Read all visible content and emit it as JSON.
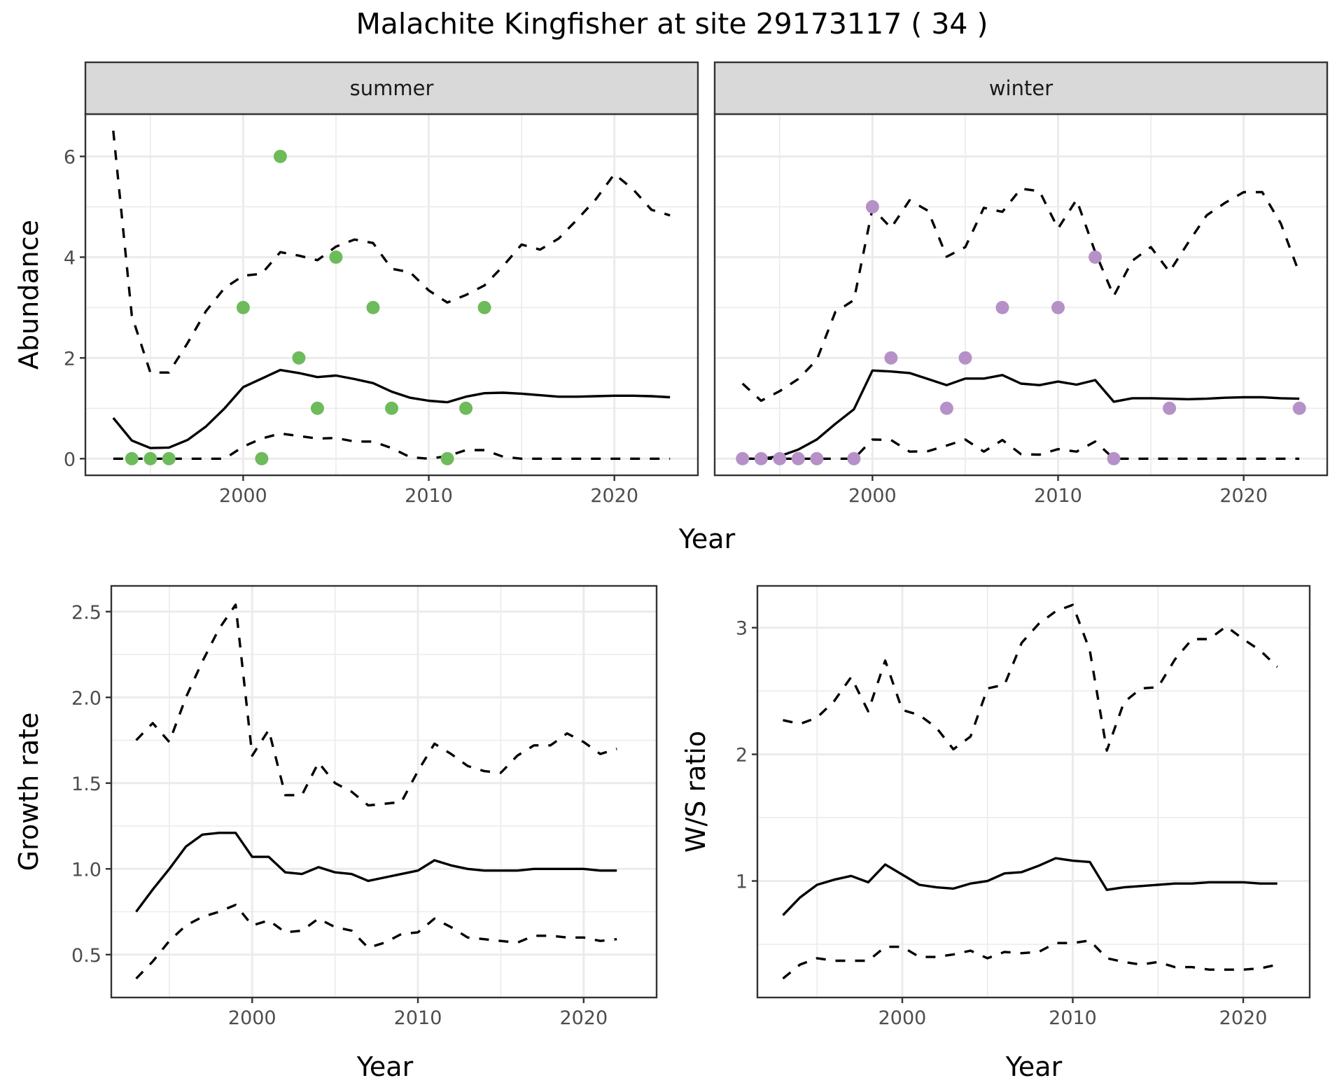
{
  "chart_data": {
    "type": "line",
    "title": "Malachite Kingfisher at site 29173117 ( 34 )",
    "panels": [
      {
        "id": "summer",
        "strip_label": "summer",
        "ylabel": "Abundance",
        "xlabel": "Year",
        "xlim": [
          1991.5,
          2024.5
        ],
        "ylim": [
          -0.33,
          6.84
        ],
        "x_ticks": [
          2000,
          2010,
          2020
        ],
        "x_tick_labels": [
          "2000",
          "2010",
          "2020"
        ],
        "y_ticks": [
          0,
          2,
          4,
          6
        ],
        "y_tick_labels": [
          "0",
          "2",
          "4",
          "6"
        ],
        "grid": true,
        "point_color": "#6dbb5b",
        "points": {
          "x": [
            1994,
            1995,
            1996,
            2000,
            2001,
            2002,
            2003,
            2004,
            2005,
            2007,
            2008,
            2011,
            2012,
            2013
          ],
          "y": [
            0,
            0,
            0,
            3,
            0,
            6,
            2,
            1,
            4,
            3,
            1,
            0,
            1,
            3
          ]
        },
        "x": [
          1993,
          1994,
          1995,
          1996,
          1997,
          1998,
          1999,
          2000,
          2001,
          2002,
          2003,
          2004,
          2005,
          2006,
          2007,
          2008,
          2009,
          2010,
          2011,
          2012,
          2013,
          2014,
          2015,
          2016,
          2017,
          2018,
          2019,
          2020,
          2021,
          2022,
          2023
        ],
        "series": [
          {
            "name": "estimate",
            "style": "solid",
            "values": [
              0.81,
              0.36,
              0.21,
              0.22,
              0.37,
              0.64,
              1.0,
              1.42,
              1.59,
              1.76,
              1.7,
              1.62,
              1.65,
              1.58,
              1.5,
              1.33,
              1.21,
              1.15,
              1.12,
              1.23,
              1.3,
              1.31,
              1.29,
              1.26,
              1.23,
              1.23,
              1.24,
              1.25,
              1.25,
              1.24,
              1.22
            ]
          },
          {
            "name": "upper",
            "style": "dashed",
            "values": [
              6.51,
              2.84,
              1.71,
              1.71,
              2.29,
              2.93,
              3.39,
              3.63,
              3.67,
              4.1,
              4.03,
              3.94,
              4.21,
              4.35,
              4.28,
              3.77,
              3.7,
              3.34,
              3.1,
              3.25,
              3.44,
              3.82,
              4.25,
              4.15,
              4.37,
              4.75,
              5.15,
              5.65,
              5.35,
              4.94,
              4.83
            ]
          },
          {
            "name": "lower",
            "style": "dashed",
            "values": [
              0,
              0,
              0,
              0,
              0,
              0,
              0,
              0.24,
              0.4,
              0.5,
              0.45,
              0.4,
              0.41,
              0.34,
              0.34,
              0.21,
              0.03,
              0,
              0.05,
              0.17,
              0.17,
              0.04,
              0,
              0,
              0,
              0,
              0,
              0,
              0,
              0,
              0
            ]
          }
        ]
      },
      {
        "id": "winter",
        "strip_label": "winter",
        "ylabel": "Abundance",
        "xlabel": "Year",
        "xlim": [
          1991.5,
          2024.5
        ],
        "ylim": [
          -0.33,
          6.84
        ],
        "x_ticks": [
          2000,
          2010,
          2020
        ],
        "x_tick_labels": [
          "2000",
          "2010",
          "2020"
        ],
        "y_ticks": [
          0,
          2,
          4,
          6
        ],
        "y_tick_labels": [],
        "grid": true,
        "point_color": "#b591c8",
        "points": {
          "x": [
            1993,
            1994,
            1995,
            1996,
            1997,
            1999,
            2000,
            2001,
            2004,
            2005,
            2007,
            2010,
            2012,
            2013,
            2016,
            2023
          ],
          "y": [
            0,
            0,
            0,
            0,
            0,
            0,
            5,
            2,
            1,
            2,
            3,
            3,
            4,
            0,
            1,
            1
          ]
        },
        "x": [
          1993,
          1994,
          1995,
          1996,
          1997,
          1998,
          1999,
          2000,
          2001,
          2002,
          2003,
          2004,
          2005,
          2006,
          2007,
          2008,
          2009,
          2010,
          2011,
          2012,
          2013,
          2014,
          2015,
          2016,
          2017,
          2018,
          2019,
          2020,
          2021,
          2022,
          2023
        ],
        "series": [
          {
            "name": "estimate",
            "style": "solid",
            "values": [
              0,
              0,
              0.05,
              0.18,
              0.38,
              0.69,
              0.98,
              1.75,
              1.73,
              1.7,
              1.58,
              1.46,
              1.59,
              1.59,
              1.66,
              1.49,
              1.46,
              1.53,
              1.47,
              1.56,
              1.13,
              1.2,
              1.2,
              1.19,
              1.18,
              1.19,
              1.21,
              1.22,
              1.22,
              1.2,
              1.19
            ]
          },
          {
            "name": "upper",
            "style": "dashed",
            "values": [
              1.49,
              1.15,
              1.34,
              1.58,
              1.96,
              2.91,
              3.15,
              4.97,
              4.58,
              5.13,
              4.92,
              4.01,
              4.2,
              4.98,
              4.9,
              5.36,
              5.31,
              4.57,
              5.14,
              4.1,
              3.23,
              3.93,
              4.2,
              3.71,
              4.28,
              4.83,
              5.08,
              5.29,
              5.29,
              4.67,
              3.68
            ]
          },
          {
            "name": "lower",
            "style": "dashed",
            "values": [
              0,
              0,
              0,
              0,
              0,
              0,
              0,
              0.38,
              0.37,
              0.14,
              0.15,
              0.26,
              0.38,
              0.14,
              0.37,
              0.09,
              0.08,
              0.19,
              0.14,
              0.34,
              0,
              0,
              0,
              0,
              0,
              0,
              0,
              0,
              0,
              0,
              0
            ]
          }
        ]
      },
      {
        "id": "growth",
        "strip_label": "",
        "ylabel": "Growth rate",
        "xlabel": "Year",
        "xlim": [
          1991.5,
          2024.4
        ],
        "ylim": [
          0.25,
          2.65
        ],
        "x_ticks": [
          2000,
          2010,
          2020
        ],
        "x_tick_labels": [
          "2000",
          "2010",
          "2020"
        ],
        "y_ticks": [
          0.5,
          1.0,
          1.5,
          2.0,
          2.5
        ],
        "y_tick_labels": [
          "0.5",
          "1.0",
          "1.5",
          "2.0",
          "2.5"
        ],
        "grid": true,
        "x": [
          1993,
          1994,
          1995,
          1996,
          1997,
          1998,
          1999,
          2000,
          2001,
          2002,
          2003,
          2004,
          2005,
          2006,
          2007,
          2008,
          2009,
          2010,
          2011,
          2012,
          2013,
          2014,
          2015,
          2016,
          2017,
          2018,
          2019,
          2020,
          2021,
          2022
        ],
        "series": [
          {
            "name": "estimate",
            "style": "solid",
            "values": [
              0.75,
              0.88,
              1.0,
              1.13,
              1.2,
              1.21,
              1.21,
              1.07,
              1.07,
              0.98,
              0.97,
              1.01,
              0.98,
              0.97,
              0.93,
              0.95,
              0.97,
              0.99,
              1.05,
              1.02,
              1.0,
              0.99,
              0.99,
              0.99,
              1.0,
              1.0,
              1.0,
              1.0,
              0.99,
              0.99
            ]
          },
          {
            "name": "upper",
            "style": "dashed",
            "values": [
              1.75,
              1.85,
              1.74,
              2.0,
              2.21,
              2.4,
              2.54,
              1.66,
              1.81,
              1.43,
              1.43,
              1.62,
              1.5,
              1.45,
              1.37,
              1.38,
              1.39,
              1.57,
              1.73,
              1.67,
              1.6,
              1.57,
              1.56,
              1.66,
              1.72,
              1.72,
              1.79,
              1.74,
              1.67,
              1.7
            ]
          },
          {
            "name": "lower",
            "style": "dashed",
            "values": [
              0.36,
              0.46,
              0.58,
              0.67,
              0.72,
              0.75,
              0.79,
              0.67,
              0.7,
              0.63,
              0.64,
              0.71,
              0.66,
              0.64,
              0.54,
              0.57,
              0.62,
              0.63,
              0.71,
              0.66,
              0.6,
              0.59,
              0.58,
              0.57,
              0.61,
              0.61,
              0.6,
              0.6,
              0.58,
              0.59
            ]
          }
        ]
      },
      {
        "id": "ws_ratio",
        "strip_label": "",
        "ylabel": "W/S ratio",
        "xlabel": "Year",
        "xlim": [
          1991.5,
          2023.9
        ],
        "ylim": [
          0.08,
          3.33
        ],
        "x_ticks": [
          2000,
          2010,
          2020
        ],
        "x_tick_labels": [
          "2000",
          "2010",
          "2020"
        ],
        "y_ticks": [
          1,
          2,
          3
        ],
        "y_tick_labels": [
          "1",
          "2",
          "3"
        ],
        "grid": true,
        "x": [
          1993,
          1994,
          1995,
          1996,
          1997,
          1998,
          1999,
          2000,
          2001,
          2002,
          2003,
          2004,
          2005,
          2006,
          2007,
          2008,
          2009,
          2010,
          2011,
          2012,
          2013,
          2014,
          2015,
          2016,
          2017,
          2018,
          2019,
          2020,
          2021,
          2022
        ],
        "series": [
          {
            "name": "estimate",
            "style": "solid",
            "values": [
              0.73,
              0.87,
              0.97,
              1.01,
              1.04,
              0.99,
              1.13,
              1.05,
              0.97,
              0.95,
              0.94,
              0.98,
              1.0,
              1.06,
              1.07,
              1.12,
              1.18,
              1.16,
              1.15,
              0.93,
              0.95,
              0.96,
              0.97,
              0.98,
              0.98,
              0.99,
              0.99,
              0.99,
              0.98,
              0.98
            ]
          },
          {
            "name": "upper",
            "style": "dashed",
            "values": [
              2.27,
              2.24,
              2.29,
              2.42,
              2.61,
              2.34,
              2.74,
              2.35,
              2.31,
              2.21,
              2.04,
              2.14,
              2.52,
              2.55,
              2.88,
              3.03,
              3.13,
              3.18,
              2.82,
              2.03,
              2.41,
              2.52,
              2.53,
              2.75,
              2.91,
              2.91,
              3.01,
              2.91,
              2.82,
              2.69
            ]
          },
          {
            "name": "lower",
            "style": "dashed",
            "values": [
              0.23,
              0.34,
              0.39,
              0.37,
              0.37,
              0.37,
              0.48,
              0.48,
              0.4,
              0.4,
              0.42,
              0.45,
              0.39,
              0.44,
              0.43,
              0.44,
              0.51,
              0.51,
              0.53,
              0.39,
              0.36,
              0.34,
              0.36,
              0.32,
              0.32,
              0.3,
              0.3,
              0.3,
              0.31,
              0.34
            ]
          }
        ]
      }
    ],
    "shared_xlabel_top": "Year"
  }
}
